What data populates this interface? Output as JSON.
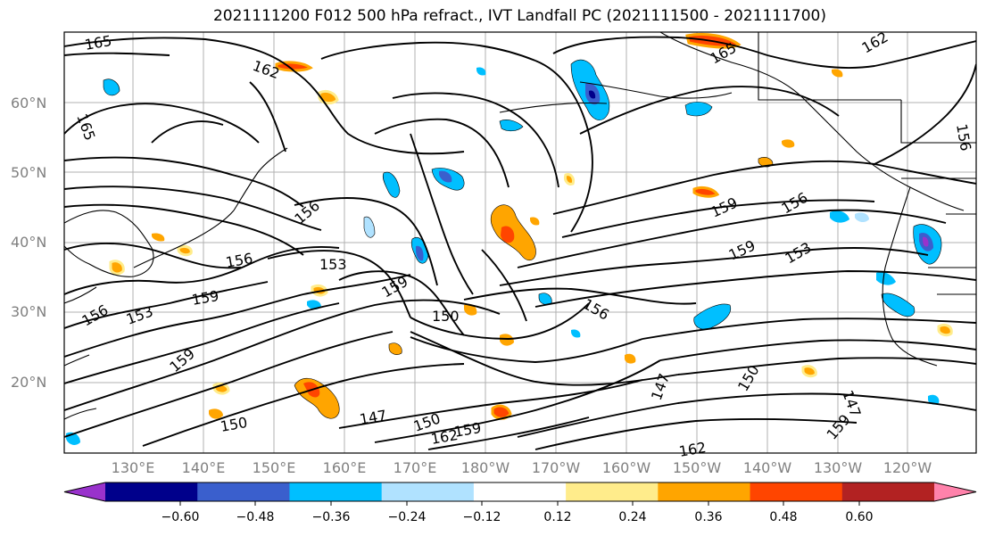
{
  "title": "2021111200 F012 500 hPa refract., IVT Landfall PC (2021111500 - 2021111700)",
  "map": {
    "latitude_labels": [
      "60°N",
      "50°N",
      "40°N",
      "30°N",
      "20°N"
    ],
    "longitude_labels": [
      "130°E",
      "140°E",
      "150°E",
      "160°E",
      "170°E",
      "180°W",
      "170°W",
      "160°W",
      "150°W",
      "140°W",
      "130°W",
      "120°W"
    ],
    "contour_labels": [
      "165",
      "162",
      "165",
      "165",
      "162",
      "156",
      "156",
      "156",
      "153",
      "156",
      "159",
      "159",
      "150",
      "159",
      "159",
      "156",
      "153",
      "153",
      "159",
      "156",
      "147",
      "150",
      "159",
      "162",
      "162",
      "147",
      "150",
      "147",
      "159",
      "150"
    ],
    "colors": {
      "contour": "#000000",
      "grid": "#b0b0b0",
      "coast": "#000000"
    }
  },
  "colorbar": {
    "colors": [
      "#9932cc",
      "#00008b",
      "#3a5fcd",
      "#00bfff",
      "#b0e2ff",
      "#ffffff",
      "#ffec8b",
      "#ffa500",
      "#ff4500",
      "#b22222",
      "#ff82ab"
    ],
    "tick_labels": [
      "−0.60",
      "−0.48",
      "−0.36",
      "−0.24",
      "−0.12",
      "0.12",
      "0.24",
      "0.36",
      "0.48",
      "0.60"
    ]
  }
}
